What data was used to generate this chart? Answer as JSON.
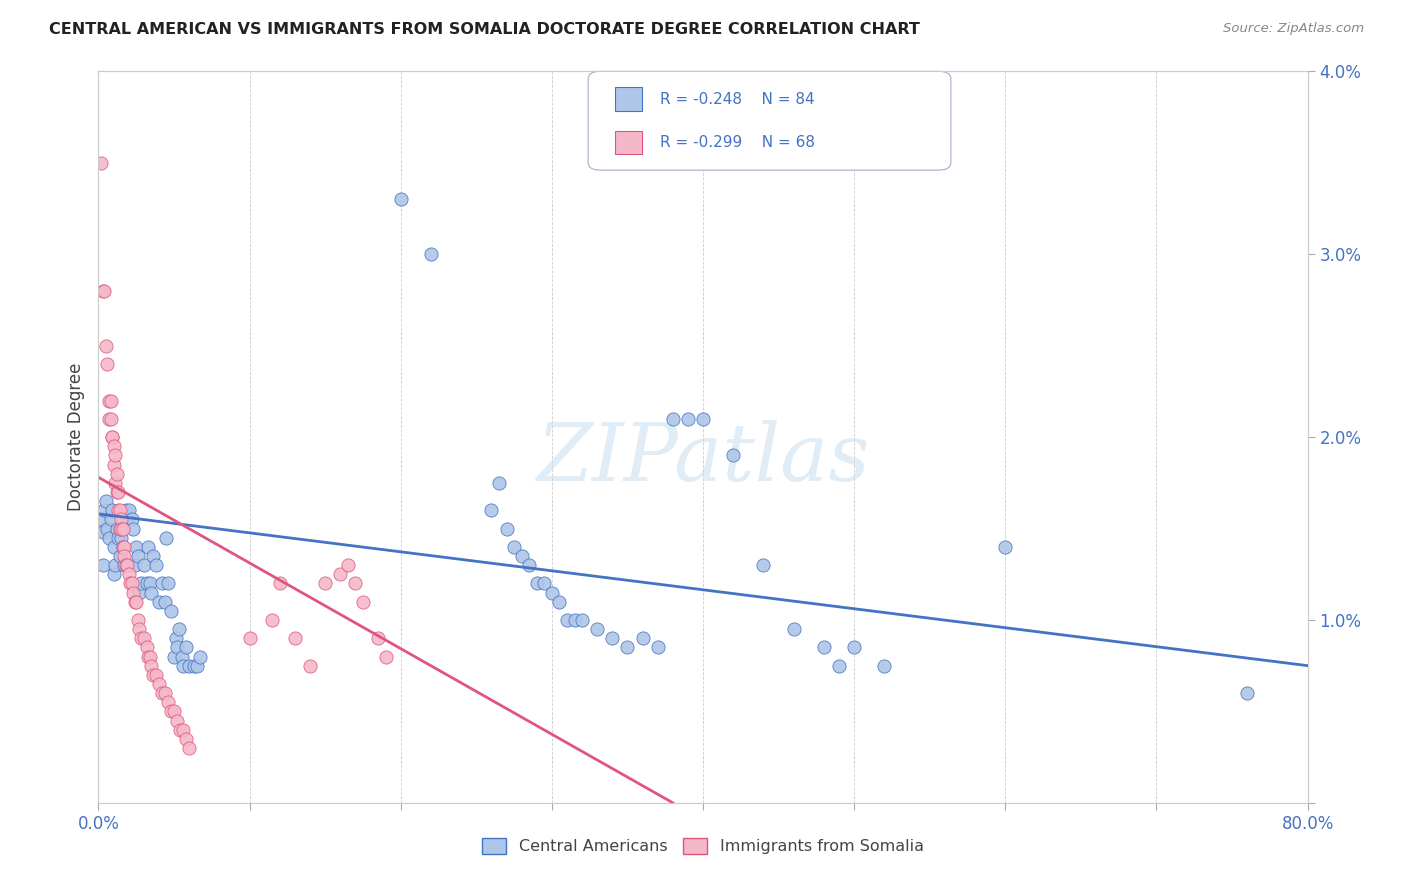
{
  "title": "CENTRAL AMERICAN VS IMMIGRANTS FROM SOMALIA DOCTORATE DEGREE CORRELATION CHART",
  "source": "Source: ZipAtlas.com",
  "ylabel": "Doctorate Degree",
  "x_min": 0.0,
  "x_max": 0.8,
  "y_min": 0.0,
  "y_max": 0.04,
  "legend_r1": "-0.248",
  "legend_n1": "84",
  "legend_r2": "-0.299",
  "legend_n2": "68",
  "color_blue": "#aec6e8",
  "color_pink": "#f4b8c8",
  "color_blue_line": "#4472c4",
  "color_pink_line": "#e05580",
  "color_text_blue": "#4472c4",
  "watermark": "ZIPatlas",
  "blue_scatter": [
    [
      0.002,
      0.0155
    ],
    [
      0.003,
      0.0148
    ],
    [
      0.003,
      0.013
    ],
    [
      0.004,
      0.016
    ],
    [
      0.005,
      0.0165
    ],
    [
      0.006,
      0.015
    ],
    [
      0.007,
      0.0145
    ],
    [
      0.008,
      0.0155
    ],
    [
      0.009,
      0.016
    ],
    [
      0.01,
      0.014
    ],
    [
      0.01,
      0.0125
    ],
    [
      0.011,
      0.013
    ],
    [
      0.012,
      0.015
    ],
    [
      0.013,
      0.0145
    ],
    [
      0.014,
      0.0135
    ],
    [
      0.015,
      0.0145
    ],
    [
      0.016,
      0.014
    ],
    [
      0.017,
      0.013
    ],
    [
      0.018,
      0.016
    ],
    [
      0.019,
      0.0155
    ],
    [
      0.02,
      0.016
    ],
    [
      0.022,
      0.0155
    ],
    [
      0.023,
      0.015
    ],
    [
      0.024,
      0.013
    ],
    [
      0.025,
      0.014
    ],
    [
      0.026,
      0.0135
    ],
    [
      0.027,
      0.0115
    ],
    [
      0.028,
      0.012
    ],
    [
      0.03,
      0.013
    ],
    [
      0.032,
      0.012
    ],
    [
      0.033,
      0.014
    ],
    [
      0.034,
      0.012
    ],
    [
      0.035,
      0.0115
    ],
    [
      0.036,
      0.0135
    ],
    [
      0.038,
      0.013
    ],
    [
      0.04,
      0.011
    ],
    [
      0.042,
      0.012
    ],
    [
      0.044,
      0.011
    ],
    [
      0.045,
      0.0145
    ],
    [
      0.046,
      0.012
    ],
    [
      0.048,
      0.0105
    ],
    [
      0.05,
      0.008
    ],
    [
      0.051,
      0.009
    ],
    [
      0.052,
      0.0085
    ],
    [
      0.053,
      0.0095
    ],
    [
      0.055,
      0.008
    ],
    [
      0.056,
      0.0075
    ],
    [
      0.058,
      0.0085
    ],
    [
      0.06,
      0.0075
    ],
    [
      0.063,
      0.0075
    ],
    [
      0.065,
      0.0075
    ],
    [
      0.067,
      0.008
    ],
    [
      0.2,
      0.033
    ],
    [
      0.22,
      0.03
    ],
    [
      0.26,
      0.016
    ],
    [
      0.265,
      0.0175
    ],
    [
      0.27,
      0.015
    ],
    [
      0.275,
      0.014
    ],
    [
      0.28,
      0.0135
    ],
    [
      0.285,
      0.013
    ],
    [
      0.29,
      0.012
    ],
    [
      0.295,
      0.012
    ],
    [
      0.3,
      0.0115
    ],
    [
      0.305,
      0.011
    ],
    [
      0.31,
      0.01
    ],
    [
      0.315,
      0.01
    ],
    [
      0.32,
      0.01
    ],
    [
      0.33,
      0.0095
    ],
    [
      0.34,
      0.009
    ],
    [
      0.35,
      0.0085
    ],
    [
      0.36,
      0.009
    ],
    [
      0.37,
      0.0085
    ],
    [
      0.38,
      0.021
    ],
    [
      0.39,
      0.021
    ],
    [
      0.4,
      0.021
    ],
    [
      0.42,
      0.019
    ],
    [
      0.44,
      0.013
    ],
    [
      0.46,
      0.0095
    ],
    [
      0.48,
      0.0085
    ],
    [
      0.49,
      0.0075
    ],
    [
      0.5,
      0.0085
    ],
    [
      0.52,
      0.0075
    ],
    [
      0.6,
      0.014
    ],
    [
      0.76,
      0.006
    ]
  ],
  "pink_scatter": [
    [
      0.002,
      0.035
    ],
    [
      0.003,
      0.028
    ],
    [
      0.004,
      0.028
    ],
    [
      0.005,
      0.025
    ],
    [
      0.006,
      0.024
    ],
    [
      0.007,
      0.022
    ],
    [
      0.007,
      0.021
    ],
    [
      0.008,
      0.022
    ],
    [
      0.008,
      0.021
    ],
    [
      0.009,
      0.02
    ],
    [
      0.009,
      0.02
    ],
    [
      0.01,
      0.0195
    ],
    [
      0.01,
      0.0185
    ],
    [
      0.011,
      0.019
    ],
    [
      0.011,
      0.0175
    ],
    [
      0.012,
      0.018
    ],
    [
      0.012,
      0.017
    ],
    [
      0.013,
      0.017
    ],
    [
      0.013,
      0.016
    ],
    [
      0.014,
      0.016
    ],
    [
      0.014,
      0.015
    ],
    [
      0.015,
      0.0155
    ],
    [
      0.015,
      0.015
    ],
    [
      0.016,
      0.015
    ],
    [
      0.016,
      0.014
    ],
    [
      0.017,
      0.014
    ],
    [
      0.017,
      0.0135
    ],
    [
      0.018,
      0.013
    ],
    [
      0.019,
      0.013
    ],
    [
      0.02,
      0.0125
    ],
    [
      0.021,
      0.012
    ],
    [
      0.022,
      0.012
    ],
    [
      0.023,
      0.0115
    ],
    [
      0.024,
      0.011
    ],
    [
      0.025,
      0.011
    ],
    [
      0.026,
      0.01
    ],
    [
      0.027,
      0.0095
    ],
    [
      0.028,
      0.009
    ],
    [
      0.03,
      0.009
    ],
    [
      0.032,
      0.0085
    ],
    [
      0.033,
      0.008
    ],
    [
      0.034,
      0.008
    ],
    [
      0.035,
      0.0075
    ],
    [
      0.036,
      0.007
    ],
    [
      0.038,
      0.007
    ],
    [
      0.04,
      0.0065
    ],
    [
      0.042,
      0.006
    ],
    [
      0.044,
      0.006
    ],
    [
      0.046,
      0.0055
    ],
    [
      0.048,
      0.005
    ],
    [
      0.05,
      0.005
    ],
    [
      0.052,
      0.0045
    ],
    [
      0.054,
      0.004
    ],
    [
      0.056,
      0.004
    ],
    [
      0.058,
      0.0035
    ],
    [
      0.06,
      0.003
    ],
    [
      0.1,
      0.009
    ],
    [
      0.115,
      0.01
    ],
    [
      0.12,
      0.012
    ],
    [
      0.13,
      0.009
    ],
    [
      0.14,
      0.0075
    ],
    [
      0.15,
      0.012
    ],
    [
      0.16,
      0.0125
    ],
    [
      0.165,
      0.013
    ],
    [
      0.17,
      0.012
    ],
    [
      0.175,
      0.011
    ],
    [
      0.185,
      0.009
    ],
    [
      0.19,
      0.008
    ]
  ],
  "blue_trend_x": [
    0.0,
    0.8
  ],
  "blue_trend_y": [
    0.0158,
    0.0075
  ],
  "pink_trend_x": [
    0.0,
    0.38
  ],
  "pink_trend_y": [
    0.0178,
    0.0
  ]
}
